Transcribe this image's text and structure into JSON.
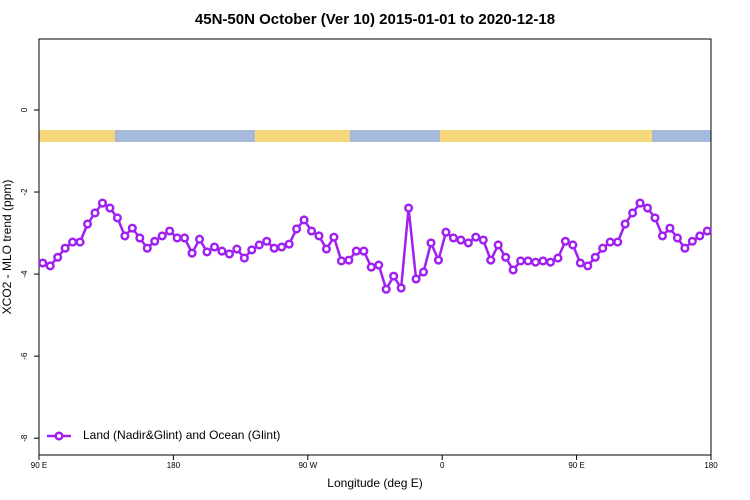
{
  "chart_data": {
    "type": "line",
    "title": "45N-50N October (Ver 10)   2015-01-01 to 2020-12-18",
    "x_label": "Longitude (deg E)",
    "y_label": "XCO2 - MLO trend (ppm)",
    "x": [
      92.5,
      97.5,
      102.5,
      107.5,
      112.5,
      117.5,
      122.5,
      127.5,
      132.5,
      137.5,
      142.5,
      147.5,
      152.5,
      157.5,
      162.5,
      167.5,
      172.5,
      177.5,
      182.5,
      187.5,
      192.5,
      197.5,
      202.5,
      207.5,
      212.5,
      217.5,
      222.5,
      227.5,
      232.5,
      237.5,
      242.5,
      247.5,
      252.5,
      257.5,
      262.5,
      267.5,
      272.5,
      277.5,
      282.5,
      287.5,
      292.5,
      297.5,
      302.5,
      307.5,
      312.5,
      317.5,
      322.5,
      327.5,
      332.5,
      337.5,
      342.5,
      347.5,
      352.5,
      357.5,
      362.5,
      367.5,
      372.5,
      377.5,
      382.5,
      387.5,
      392.5,
      397.5,
      402.5,
      407.5,
      412.5,
      417.5,
      422.5,
      427.5,
      432.5,
      437.5,
      442.5,
      447.5,
      452.5,
      457.5,
      462.5,
      467.5,
      472.5,
      477.5,
      482.5,
      487.5,
      492.5,
      497.5,
      502.5,
      507.5,
      512.5,
      517.5,
      522.5,
      527.5,
      532.5,
      537.5
    ],
    "series": [
      {
        "name": "Land (Nadir&Glint) and Ocean (Glint)",
        "color": "#a020f0",
        "values": [
          -3.73,
          -3.8,
          -3.59,
          -3.37,
          -3.22,
          -3.22,
          -2.78,
          -2.51,
          -2.27,
          -2.39,
          -2.63,
          -3.07,
          -2.88,
          -3.12,
          -3.37,
          -3.2,
          -3.07,
          -2.95,
          -3.12,
          -3.12,
          -3.49,
          -3.15,
          -3.46,
          -3.34,
          -3.44,
          -3.51,
          -3.39,
          -3.61,
          -3.41,
          -3.29,
          -3.2,
          -3.37,
          -3.34,
          -3.27,
          -2.9,
          -2.68,
          -2.95,
          -3.07,
          -3.39,
          -3.1,
          -3.68,
          -3.66,
          -3.44,
          -3.44,
          -3.83,
          -3.78,
          -4.37,
          -4.05,
          -4.34,
          -2.39,
          -4.12,
          -3.95,
          -3.24,
          -3.66,
          -2.98,
          -3.12,
          -3.17,
          -3.24,
          -3.1,
          -3.17,
          -3.66,
          -3.29,
          -3.59,
          -3.9,
          -3.68,
          -3.68,
          -3.71,
          -3.68,
          -3.71,
          -3.61,
          -3.2,
          -3.29,
          -3.73,
          -3.8,
          -3.59,
          -3.37,
          -3.22,
          -3.22,
          -2.78,
          -2.51,
          -2.27,
          -2.39,
          -2.63,
          -3.07,
          -2.88,
          -3.12,
          -3.37,
          -3.2,
          -3.07,
          -2.95
        ]
      }
    ],
    "xlim": [
      90,
      540
    ],
    "xticks": [
      {
        "value": 90,
        "label": "90 E"
      },
      180,
      {
        "value": 270,
        "label": "90 W"
      },
      {
        "value": 360,
        "label": "0"
      },
      {
        "value": 450,
        "label": "90 E"
      },
      {
        "value": 540,
        "label": "180"
      }
    ],
    "ylim": [
      -8.41,
      1.73
    ],
    "yticks": [
      -8,
      -6,
      -4,
      -2,
      0
    ],
    "grid": false,
    "legend": "bottom-left"
  }
}
